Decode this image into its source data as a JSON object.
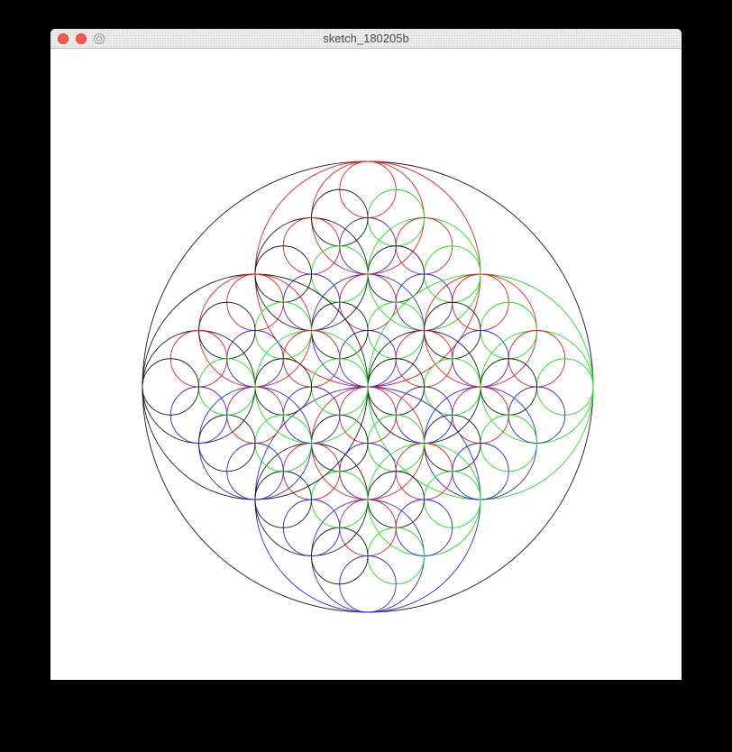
{
  "window": {
    "title": "sketch_180205b"
  },
  "colors": {
    "background": "#000000",
    "canvas": "#ffffff",
    "stroke_black": "#1a1a1a",
    "stroke_red": "#e02222",
    "stroke_green": "#22dd22",
    "stroke_blue": "#2b2bdd"
  },
  "icons": [
    "close-button-icon",
    "minimize-button-icon",
    "zoom-button-icon"
  ]
}
